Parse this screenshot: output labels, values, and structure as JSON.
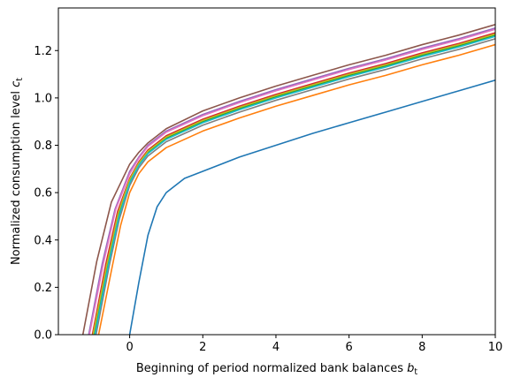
{
  "chart_data": {
    "type": "line",
    "title": "",
    "xlabel": "Beginning of period normalized bank balances",
    "xlabel_var": "b",
    "xlabel_sub": "t",
    "ylabel": "Normalized consumption level",
    "ylabel_var": "c",
    "ylabel_sub": "t",
    "xlim": [
      -1.95,
      10
    ],
    "ylim": [
      0,
      1.38
    ],
    "xticks": [
      0,
      2,
      4,
      6,
      8,
      10
    ],
    "xtick_labels": [
      "0",
      "2",
      "4",
      "6",
      "8",
      "10"
    ],
    "yticks": [
      0.0,
      0.2,
      0.4,
      0.6,
      0.8,
      1.0,
      1.2
    ],
    "ytick_labels": [
      "0.0",
      "0.2",
      "0.4",
      "0.6",
      "0.8",
      "1.0",
      "1.2"
    ],
    "grid": false,
    "legend": "none",
    "series": [
      {
        "color": "#1f77b4",
        "x": [
          0.0,
          0.25,
          0.5,
          0.75,
          1.0,
          1.5,
          2.0,
          3.0,
          4.0,
          5.0,
          6.0,
          7.0,
          8.0,
          9.0,
          10.0
        ],
        "y": [
          0.0,
          0.22,
          0.42,
          0.54,
          0.6,
          0.66,
          0.69,
          0.75,
          0.8,
          0.85,
          0.895,
          0.94,
          0.985,
          1.03,
          1.075
        ]
      },
      {
        "color": "#ff7f0e",
        "x": [
          -0.85,
          -0.5,
          -0.25,
          0.0,
          0.25,
          0.5,
          1.0,
          2.0,
          3.0,
          4.0,
          5.0,
          6.0,
          7.0,
          8.0,
          9.0,
          10.0
        ],
        "y": [
          0.0,
          0.27,
          0.46,
          0.6,
          0.68,
          0.73,
          0.79,
          0.86,
          0.915,
          0.965,
          1.01,
          1.055,
          1.095,
          1.14,
          1.18,
          1.225
        ]
      },
      {
        "color": "#2ca02c",
        "x": [
          -0.98,
          -0.6,
          -0.3,
          0.0,
          0.25,
          0.5,
          1.0,
          2.0,
          3.0,
          4.0,
          5.0,
          6.0,
          7.0,
          8.0,
          9.0,
          10.0
        ],
        "y": [
          0.0,
          0.3,
          0.51,
          0.65,
          0.72,
          0.77,
          0.83,
          0.9,
          0.955,
          1.005,
          1.05,
          1.095,
          1.135,
          1.18,
          1.22,
          1.265
        ]
      },
      {
        "color": "#d62728",
        "x": [
          -1.02,
          -0.65,
          -0.33,
          0.0,
          0.25,
          0.5,
          1.0,
          2.0,
          3.0,
          4.0,
          5.0,
          6.0,
          7.0,
          8.0,
          9.0,
          10.0
        ],
        "y": [
          0.0,
          0.3,
          0.52,
          0.66,
          0.73,
          0.78,
          0.84,
          0.91,
          0.965,
          1.015,
          1.06,
          1.105,
          1.145,
          1.19,
          1.23,
          1.275
        ]
      },
      {
        "color": "#9467bd",
        "x": [
          -1.12,
          -0.75,
          -0.4,
          0.0,
          0.25,
          0.5,
          1.0,
          2.0,
          3.0,
          4.0,
          5.0,
          6.0,
          7.0,
          8.0,
          9.0,
          10.0
        ],
        "y": [
          0.0,
          0.3,
          0.53,
          0.69,
          0.75,
          0.8,
          0.86,
          0.93,
          0.985,
          1.035,
          1.08,
          1.125,
          1.165,
          1.21,
          1.25,
          1.295
        ]
      },
      {
        "color": "#8c564b",
        "x": [
          -1.28,
          -0.9,
          -0.5,
          0.0,
          0.25,
          0.5,
          1.0,
          2.0,
          3.0,
          4.0,
          5.0,
          6.0,
          7.0,
          8.0,
          9.0,
          10.0
        ],
        "y": [
          0.0,
          0.31,
          0.56,
          0.72,
          0.77,
          0.81,
          0.87,
          0.945,
          1.0,
          1.05,
          1.095,
          1.14,
          1.18,
          1.225,
          1.265,
          1.31
        ]
      },
      {
        "color": "#e377c2",
        "x": [
          -1.1,
          -0.72,
          -0.38,
          0.0,
          0.25,
          0.5,
          1.0,
          2.0,
          3.0,
          4.0,
          5.0,
          6.0,
          7.0,
          8.0,
          9.0,
          10.0
        ],
        "y": [
          0.0,
          0.3,
          0.53,
          0.68,
          0.745,
          0.795,
          0.855,
          0.925,
          0.98,
          1.03,
          1.075,
          1.12,
          1.16,
          1.205,
          1.245,
          1.29
        ]
      },
      {
        "color": "#7f7f7f",
        "x": [
          -0.92,
          -0.56,
          -0.28,
          0.0,
          0.25,
          0.5,
          1.0,
          2.0,
          3.0,
          4.0,
          5.0,
          6.0,
          7.0,
          8.0,
          9.0,
          10.0
        ],
        "y": [
          0.0,
          0.29,
          0.49,
          0.63,
          0.705,
          0.755,
          0.815,
          0.885,
          0.94,
          0.99,
          1.035,
          1.08,
          1.12,
          1.165,
          1.205,
          1.25
        ]
      },
      {
        "color": "#bcbd22",
        "x": [
          -1.0,
          -0.62,
          -0.31,
          0.0,
          0.25,
          0.5,
          1.0,
          2.0,
          3.0,
          4.0,
          5.0,
          6.0,
          7.0,
          8.0,
          9.0,
          10.0
        ],
        "y": [
          0.0,
          0.3,
          0.515,
          0.655,
          0.725,
          0.775,
          0.835,
          0.905,
          0.96,
          1.01,
          1.055,
          1.1,
          1.14,
          1.185,
          1.225,
          1.27
        ]
      },
      {
        "color": "#17becf",
        "x": [
          -0.95,
          -0.58,
          -0.29,
          0.0,
          0.25,
          0.5,
          1.0,
          2.0,
          3.0,
          4.0,
          5.0,
          6.0,
          7.0,
          8.0,
          9.0,
          10.0
        ],
        "y": [
          0.0,
          0.295,
          0.5,
          0.64,
          0.715,
          0.765,
          0.825,
          0.895,
          0.95,
          1.0,
          1.045,
          1.09,
          1.13,
          1.175,
          1.215,
          1.26
        ]
      }
    ]
  }
}
